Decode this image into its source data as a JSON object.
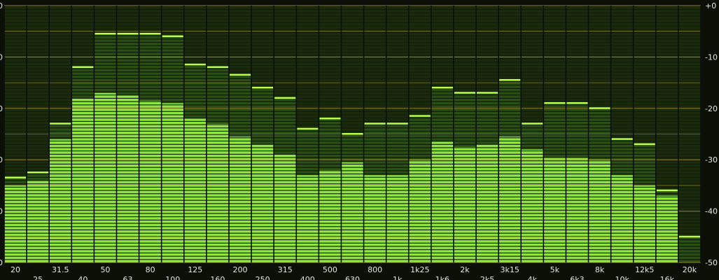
{
  "chart_data": {
    "type": "bar",
    "categories": [
      "20",
      "25",
      "31.5",
      "40",
      "50",
      "63",
      "80",
      "100",
      "125",
      "160",
      "200",
      "250",
      "315",
      "400",
      "500",
      "630",
      "800",
      "1k",
      "1k25",
      "1k6",
      "2k",
      "2k5",
      "3k15",
      "4k",
      "5k",
      "6k3",
      "8k",
      "10k",
      "12k5",
      "16k",
      "20k"
    ],
    "values": [
      -35,
      -34,
      -26,
      -18,
      -17,
      -17.5,
      -18.5,
      -19,
      -22,
      -23,
      -25.5,
      -27,
      -29,
      -33,
      -32,
      -30.5,
      -33,
      -33,
      -30,
      -26.5,
      -27.5,
      -27,
      -25.5,
      -28,
      -29.5,
      -29.5,
      -30,
      -33,
      -35,
      -37,
      -50
    ],
    "peaks": [
      -33.5,
      -32.5,
      -23,
      -12,
      -5.5,
      -5.5,
      -5.5,
      -6,
      -11.5,
      -12,
      -13.5,
      -16,
      -18,
      -24,
      -22,
      -25,
      -23,
      -23,
      -21.5,
      -16,
      -17,
      -17,
      -14.5,
      -23,
      -19,
      -19,
      -20,
      -26,
      -27,
      -36,
      -45
    ],
    "ytick_values": [
      0,
      -10,
      -20,
      -30,
      -40,
      -50
    ],
    "ytick_labels": [
      "+0",
      "-10",
      "-20",
      "-30",
      "-40",
      "-50"
    ],
    "ylim": [
      -50,
      0
    ],
    "grid": true,
    "colors": {
      "background": "#0b0f06",
      "bar_fill": "#8fe640",
      "bar_dark": "#3a6b1c",
      "peak": "#b9ff47",
      "grid_major": "#c9a23a",
      "grid_minor": "#1d2a0f",
      "tick_text": "#e6e6e6"
    }
  }
}
